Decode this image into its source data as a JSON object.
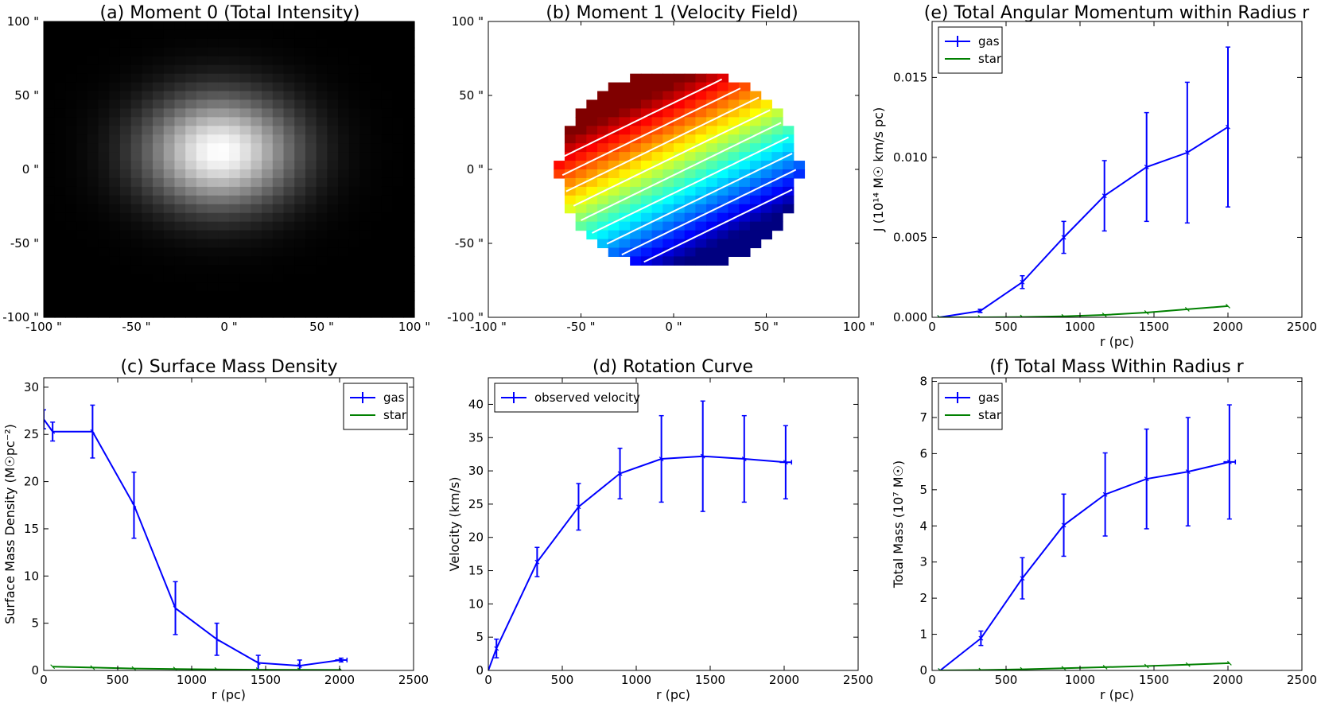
{
  "chart_data": [
    {
      "id": "a",
      "type": "heatmap",
      "title": "(a) Moment 0 (Total Intensity)",
      "xlim": [
        -100,
        100
      ],
      "ylim": [
        -100,
        100
      ],
      "xticks": [
        -100,
        -50,
        0,
        50,
        100
      ],
      "yticks": [
        -100,
        -50,
        0,
        50,
        100
      ],
      "xtick_labels": [
        "-100 \"",
        "-50 \"",
        "0 \"",
        "50 \"",
        "100 \""
      ],
      "ytick_labels": [
        "-100 \"",
        "-50 \"",
        "0 \"",
        "50 \"",
        "100 \""
      ],
      "colormap": "gray",
      "peak": [
        -5,
        12
      ],
      "sigma": [
        26,
        24
      ]
    },
    {
      "id": "b",
      "type": "heatmap",
      "title": "(b) Moment 1 (Velocity Field)",
      "xlim": [
        -100,
        100
      ],
      "ylim": [
        -100,
        100
      ],
      "xticks": [
        -100,
        -50,
        0,
        50,
        100
      ],
      "yticks": [
        -100,
        -50,
        0,
        50,
        100
      ],
      "xtick_labels": [
        "-100 \"",
        "-50 \"",
        "0 \"",
        "50 \"",
        "100 \""
      ],
      "ytick_labels": [
        "-100 \"",
        "-50 \"",
        "0 \"",
        "50 \"",
        "100 \""
      ],
      "colormap": "jet",
      "region_center": [
        3,
        0
      ],
      "region_radii": [
        65,
        67
      ],
      "contour_lines": 9
    },
    {
      "id": "e",
      "type": "line",
      "title": "(e) Total Angular Momentum within Radius r",
      "xlabel": "r (pc)",
      "ylabel": "J (10¹⁴ M☉ km/s pc)",
      "xlim": [
        0,
        2500
      ],
      "ylim": [
        0,
        0.0185
      ],
      "xticks": [
        0,
        500,
        1000,
        1500,
        2000,
        2500
      ],
      "yticks": [
        0,
        0.005,
        0.01,
        0.015
      ],
      "ytick_labels": [
        "0.000",
        "0.005",
        "0.010",
        "0.015"
      ],
      "legend": "top-left",
      "series": [
        {
          "name": "gas",
          "color": "#0000ff",
          "x": [
            50,
            325,
            610,
            890,
            1165,
            1450,
            1725,
            2000
          ],
          "y": [
            0.0,
            0.0004,
            0.0022,
            0.005,
            0.0076,
            0.0094,
            0.0103,
            0.0119
          ],
          "yerr": [
            0.0,
            0.0001,
            0.0004,
            0.001,
            0.0022,
            0.0034,
            0.0044,
            0.005
          ]
        },
        {
          "name": "star",
          "color": "#008000",
          "x": [
            50,
            325,
            610,
            890,
            1165,
            1450,
            1725,
            2000
          ],
          "y": [
            0.0,
            0.0,
            2e-05,
            6e-05,
            0.00015,
            0.0003,
            0.0005,
            0.0007
          ]
        }
      ]
    },
    {
      "id": "c",
      "type": "line",
      "title": "(c) Surface Mass Density",
      "xlabel": "r (pc)",
      "ylabel": "Surface Mass Density (M☉pc⁻²)",
      "xlim": [
        0,
        2500
      ],
      "ylim": [
        0,
        31
      ],
      "xticks": [
        0,
        500,
        1000,
        1500,
        2000,
        2500
      ],
      "yticks": [
        0,
        5,
        10,
        15,
        20,
        25,
        30
      ],
      "legend": "top-right",
      "series": [
        {
          "name": "gas",
          "color": "#0000ff",
          "x": [
            0,
            60,
            330,
            610,
            890,
            1170,
            1450,
            1730,
            2010
          ],
          "y": [
            26.6,
            25.3,
            25.3,
            17.5,
            6.6,
            3.3,
            0.8,
            0.5,
            1.1
          ],
          "yerr": [
            1.0,
            1.0,
            2.8,
            3.5,
            2.8,
            1.7,
            0.8,
            0.6,
            0.2
          ],
          "xerr": [
            0,
            0,
            0,
            0,
            0,
            0,
            0,
            0,
            40
          ]
        },
        {
          "name": "star",
          "color": "#008000",
          "x": [
            60,
            330,
            610,
            890,
            1170,
            1450,
            1730,
            2010
          ],
          "y": [
            0.4,
            0.3,
            0.2,
            0.15,
            0.1,
            0.08,
            0.06,
            0.05
          ]
        }
      ]
    },
    {
      "id": "d",
      "type": "line",
      "title": "(d) Rotation Curve",
      "xlabel": "r (pc)",
      "ylabel": "Velocity (km/s)",
      "xlim": [
        0,
        2500
      ],
      "ylim": [
        0,
        44
      ],
      "xticks": [
        0,
        500,
        1000,
        1500,
        2000,
        2500
      ],
      "yticks": [
        0,
        5,
        10,
        15,
        20,
        25,
        30,
        35,
        40
      ],
      "legend": "top-left",
      "series": [
        {
          "name": "observed velocity",
          "color": "#0000ff",
          "x": [
            0,
            55,
            330,
            610,
            890,
            1170,
            1450,
            1730,
            2010
          ],
          "y": [
            0,
            3.3,
            16.3,
            24.6,
            29.6,
            31.8,
            32.2,
            31.8,
            31.3
          ],
          "yerr": [
            0,
            1.4,
            2.2,
            3.5,
            3.8,
            6.5,
            8.3,
            6.5,
            5.5
          ],
          "xerr": [
            0,
            0,
            0,
            0,
            0,
            0,
            0,
            0,
            40
          ]
        }
      ]
    },
    {
      "id": "f",
      "type": "line",
      "title": "(f) Total Mass Within Radius r",
      "xlabel": "r (pc)",
      "ylabel": "Total Mass (10⁷ M☉)",
      "xlim": [
        0,
        2500
      ],
      "ylim": [
        0,
        8.1
      ],
      "xticks": [
        0,
        500,
        1000,
        1500,
        2000,
        2500
      ],
      "yticks": [
        0,
        1,
        2,
        3,
        4,
        5,
        6,
        7,
        8
      ],
      "legend": "top-left",
      "series": [
        {
          "name": "gas",
          "color": "#0000ff",
          "x": [
            55,
            330,
            610,
            890,
            1170,
            1450,
            1730,
            2010
          ],
          "y": [
            0.0,
            0.89,
            2.55,
            4.02,
            4.87,
            5.3,
            5.5,
            5.77
          ],
          "yerr": [
            0,
            0.2,
            0.57,
            0.86,
            1.15,
            1.38,
            1.5,
            1.58
          ],
          "xerr": [
            0,
            0,
            0,
            0,
            0,
            0,
            0,
            40
          ]
        },
        {
          "name": "star",
          "color": "#008000",
          "x": [
            55,
            330,
            610,
            890,
            1170,
            1450,
            1730,
            2010
          ],
          "y": [
            0.0,
            0.01,
            0.03,
            0.06,
            0.09,
            0.12,
            0.16,
            0.2
          ]
        }
      ]
    }
  ]
}
